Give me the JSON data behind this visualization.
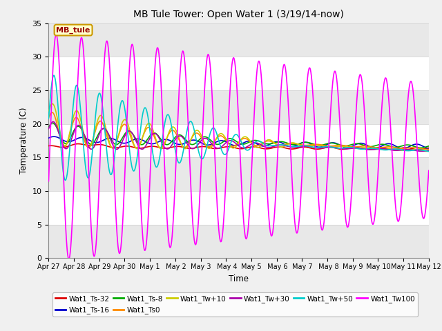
{
  "title": "MB Tule Tower: Open Water 1 (3/19/14-now)",
  "xlabel": "Time",
  "ylabel": "Temperature (C)",
  "ylim": [
    0,
    35
  ],
  "yticks": [
    0,
    5,
    10,
    15,
    20,
    25,
    30,
    35
  ],
  "legend_label": "MB_tule",
  "series": {
    "Wat1_Ts-32": {
      "color": "#dd0000",
      "lw": 1.2
    },
    "Wat1_Ts-16": {
      "color": "#0000cc",
      "lw": 1.2
    },
    "Wat1_Ts-8": {
      "color": "#00aa00",
      "lw": 1.2
    },
    "Wat1_Ts0": {
      "color": "#ff8800",
      "lw": 1.2
    },
    "Wat1_Tw+10": {
      "color": "#cccc00",
      "lw": 1.2
    },
    "Wat1_Tw+30": {
      "color": "#aa00aa",
      "lw": 1.2
    },
    "Wat1_Tw+50": {
      "color": "#00cccc",
      "lw": 1.2
    },
    "Wat1_Tw100": {
      "color": "#ff00ff",
      "lw": 1.2
    }
  },
  "fig_bg": "#f0f0f0",
  "plot_bg": "#ffffff",
  "band_color": "#e8e8e8",
  "tick_labels": [
    "Apr 27",
    "Apr 28",
    "Apr 29",
    "Apr 30",
    "May 1",
    " May 2",
    "May 3",
    " May 4",
    "May 5",
    " May 6",
    "May 7",
    " May 8",
    "May 9",
    "May 10",
    "May 11",
    "May 12"
  ],
  "tick_days": [
    0,
    1,
    2,
    3,
    4,
    5,
    6,
    7,
    8,
    9,
    10,
    11,
    12,
    13,
    14,
    15
  ]
}
